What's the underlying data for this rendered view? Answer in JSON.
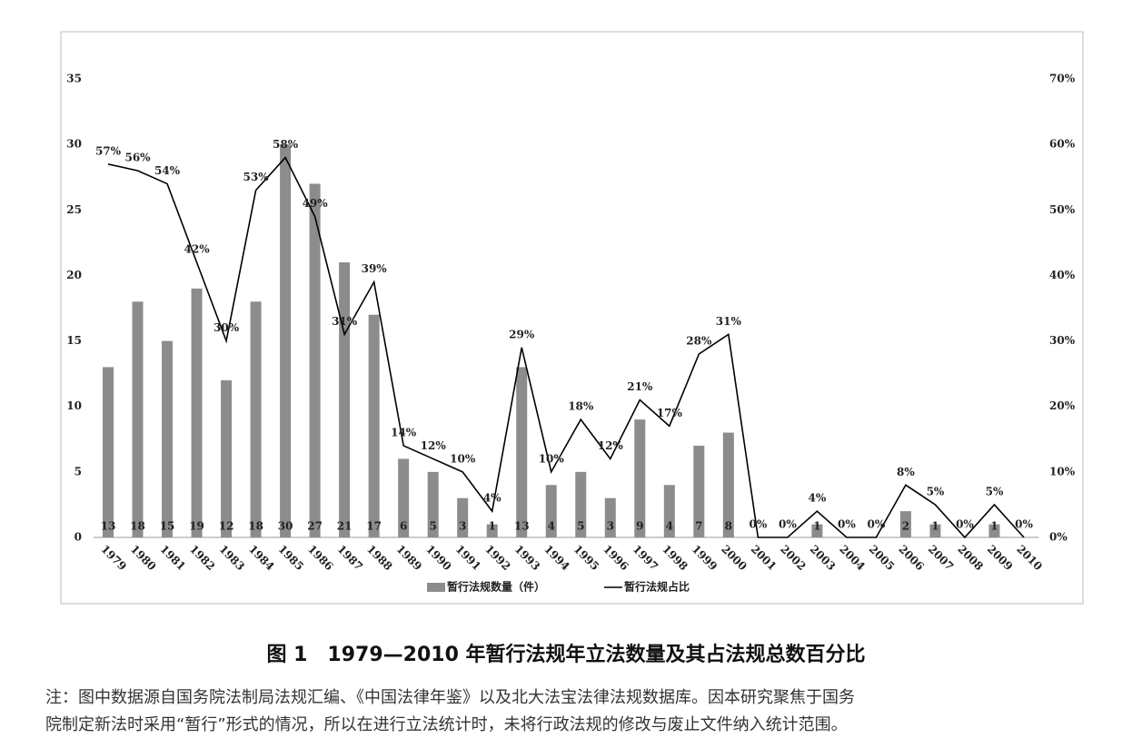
{
  "chart_data": {
    "type": "bar",
    "categories": [
      "1979",
      "1980",
      "1981",
      "1982",
      "1983",
      "1984",
      "1985",
      "1986",
      "1987",
      "1988",
      "1989",
      "1990",
      "1991",
      "1992",
      "1993",
      "1994",
      "1995",
      "1996",
      "1997",
      "1998",
      "1999",
      "2000",
      "2001",
      "2002",
      "2003",
      "2004",
      "2005",
      "2006",
      "2007",
      "2008",
      "2009",
      "2010"
    ],
    "series": [
      {
        "name": "暂行法规数量（件）",
        "color": "#8c8c8c",
        "values": [
          13,
          18,
          15,
          19,
          12,
          18,
          30,
          27,
          21,
          17,
          6,
          5,
          3,
          1,
          13,
          4,
          5,
          3,
          9,
          4,
          7,
          8,
          0,
          0,
          1,
          0,
          0,
          2,
          1,
          0,
          1,
          0
        ]
      },
      {
        "name": "暂行法规占比",
        "color": "#000000",
        "type": "line",
        "axis": "y2",
        "values": [
          57,
          56,
          54,
          42,
          30,
          53,
          58,
          49,
          31,
          39,
          14,
          12,
          10,
          4,
          29,
          10,
          18,
          12,
          21,
          17,
          28,
          31,
          0,
          0,
          4,
          0,
          0,
          8,
          5,
          0,
          5,
          0
        ],
        "value_labels": [
          "57%",
          "56%",
          "54%",
          "42%",
          "30%",
          "53%",
          "58%",
          "49%",
          "31%",
          "39%",
          "14%",
          "12%",
          "10%",
          "4%",
          "29%",
          "10%",
          "18%",
          "12%",
          "21%",
          "17%",
          "28%",
          "31%",
          "0%",
          "0%",
          "4%",
          "0%",
          "0%",
          "8%",
          "5%",
          "0%",
          "5%",
          "0%"
        ]
      }
    ],
    "ylim": [
      0,
      35
    ],
    "yticks": [
      0,
      5,
      10,
      15,
      20,
      25,
      30,
      35
    ],
    "y2lim": [
      0,
      70
    ],
    "y2ticks": [
      {
        "value": 0,
        "label": "0%"
      },
      {
        "value": 10,
        "label": "10%"
      },
      {
        "value": 20,
        "label": "20%"
      },
      {
        "value": 30,
        "label": "30%"
      },
      {
        "value": 40,
        "label": "40%"
      },
      {
        "value": 50,
        "label": "50%"
      },
      {
        "value": 60,
        "label": "60%"
      },
      {
        "value": 70,
        "label": "70%"
      }
    ],
    "legend": "bottom"
  },
  "caption": "图 1　1979—2010 年暂行法规年立法数量及其占法规总数百分比",
  "note": [
    "注：图中数据源自国务院法制局法规汇编、《中国法律年鉴》以及北大法宝法律法规数据库。因本研究聚焦于国务",
    "院制定新法时采用“暂行”形式的情况，所以在进行立法统计时，未将行政法规的修改与废止文件纳入统计范围。"
  ]
}
